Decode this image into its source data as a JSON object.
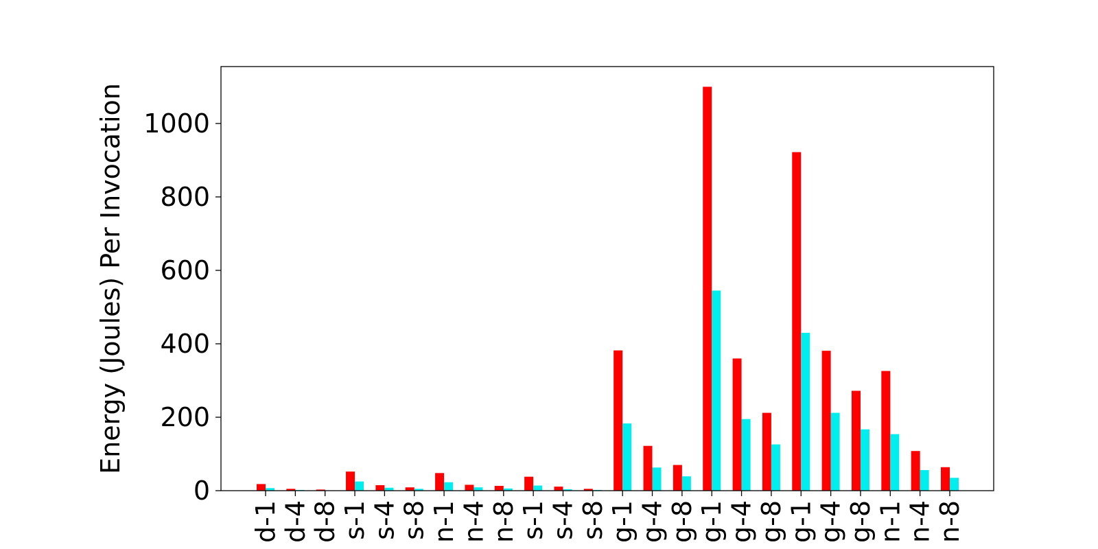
{
  "chart_data": {
    "type": "bar",
    "title": "",
    "xlabel": "",
    "ylabel": "Energy (Joules) Per Invocation",
    "ylim": [
      0,
      1155
    ],
    "yticks": [
      0,
      200,
      400,
      600,
      800,
      1000
    ],
    "grid": false,
    "legend": "none",
    "categories": [
      "d-1",
      "d-4",
      "d-8",
      "s-1",
      "s-4",
      "s-8",
      "n-1",
      "n-4",
      "n-8",
      "s-1",
      "s-4",
      "s-8",
      "g-1",
      "g-4",
      "g-8",
      "g-1",
      "g-4",
      "g-8",
      "g-1",
      "g-4",
      "g-8",
      "n-1",
      "n-4",
      "n-8"
    ],
    "series": [
      {
        "color": "#ff0000",
        "values": [
          18,
          5,
          3,
          52,
          15,
          9,
          48,
          16,
          13,
          38,
          11,
          5,
          382,
          122,
          70,
          1100,
          360,
          212,
          922,
          381,
          272,
          326,
          108,
          64
        ]
      },
      {
        "color": "#00eeee",
        "values": [
          7,
          2,
          1,
          25,
          8,
          5,
          23,
          9,
          6,
          14,
          4,
          2,
          183,
          63,
          39,
          545,
          195,
          126,
          430,
          212,
          167,
          154,
          56,
          35
        ]
      }
    ]
  }
}
